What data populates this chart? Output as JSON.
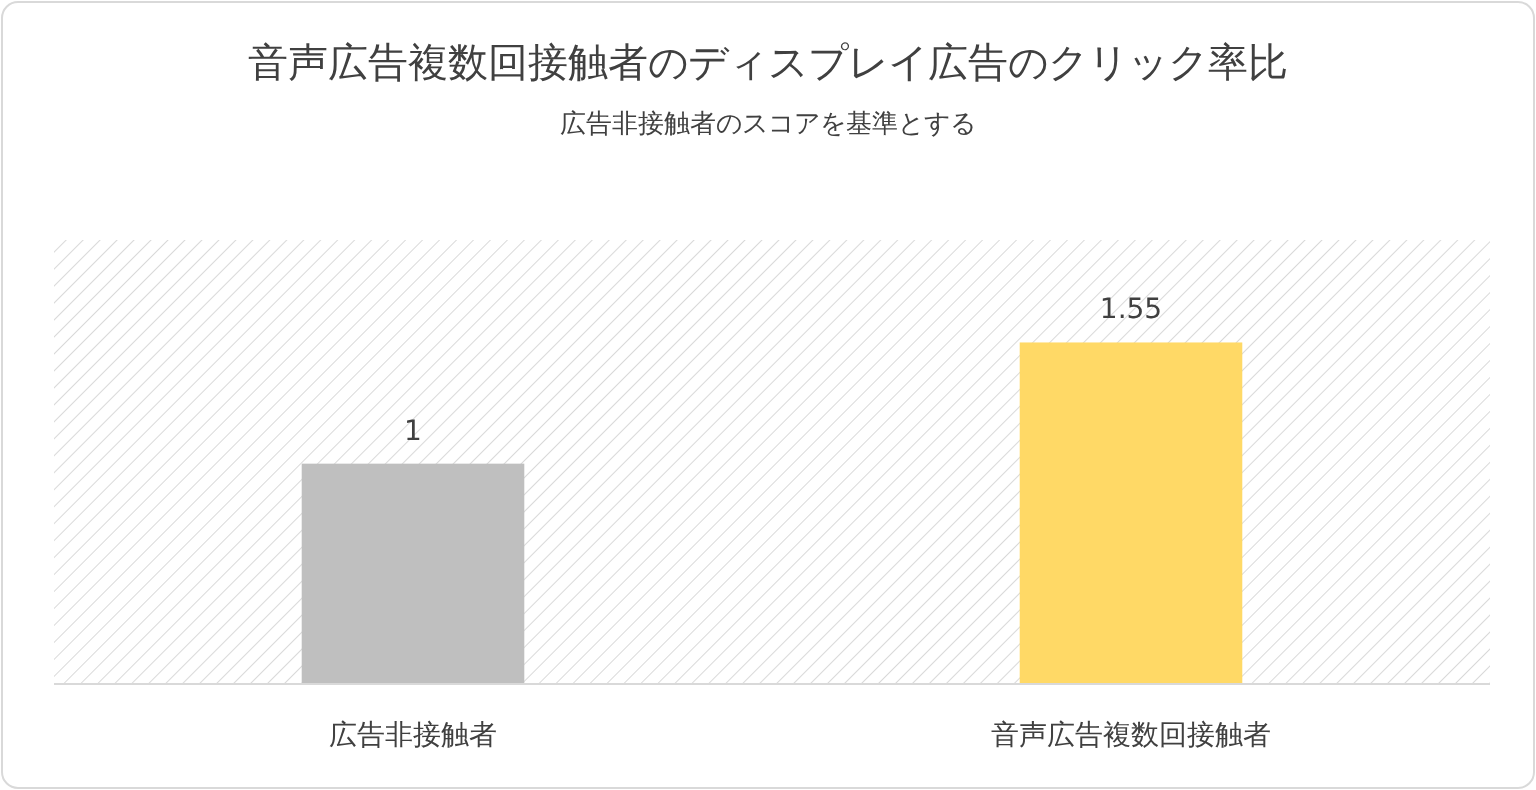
{
  "chart_data": {
    "type": "bar",
    "title": "音声広告複数回接触者のディスプレイ広告のクリック率比",
    "subtitle": "広告非接触者のスコアを基準とする",
    "categories": [
      "広告非接触者",
      "音声広告複数回接触者"
    ],
    "values": [
      1,
      1.55
    ],
    "colors": [
      "#bfbfbf",
      "#ffd966"
    ],
    "data_labels": true
  }
}
